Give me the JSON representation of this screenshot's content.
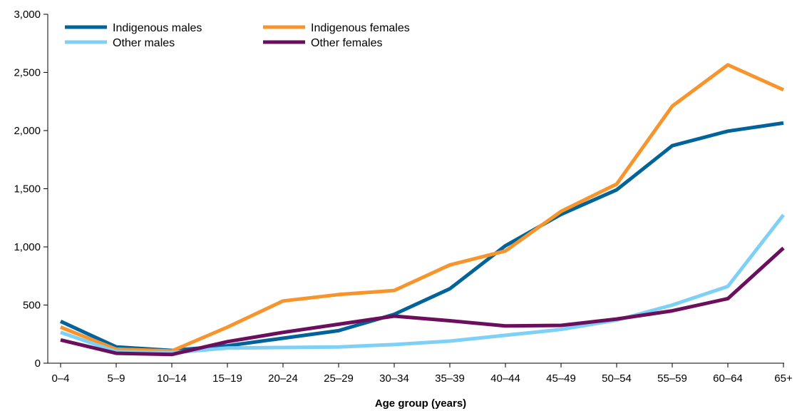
{
  "chart_data": {
    "type": "line",
    "title": "",
    "xlabel": "Age group (years)",
    "ylabel": "",
    "ylim": [
      0,
      3000
    ],
    "yticks": [
      0,
      500,
      1000,
      1500,
      2000,
      2500,
      3000
    ],
    "ytick_labels": [
      "0",
      "500",
      "1,000",
      "1,500",
      "2,000",
      "2,500",
      "3,000"
    ],
    "categories": [
      "0–4",
      "5–9",
      "10–14",
      "15–19",
      "20–24",
      "25–29",
      "30–34",
      "35–39",
      "40–44",
      "45–49",
      "50–54",
      "55–59",
      "60–64",
      "65+"
    ],
    "grid": false,
    "legend_position": "top-left",
    "series": [
      {
        "name": "Indigenous males",
        "color": "#00649b",
        "values": [
          360,
          140,
          110,
          150,
          215,
          280,
          420,
          640,
          1010,
          1280,
          1490,
          1870,
          1995,
          2065
        ]
      },
      {
        "name": "Indigenous females",
        "color": "#f7952c",
        "values": [
          310,
          120,
          105,
          310,
          535,
          590,
          625,
          845,
          965,
          1305,
          1540,
          2210,
          2565,
          2350
        ]
      },
      {
        "name": "Other males",
        "color": "#7fd0f7",
        "values": [
          265,
          100,
          90,
          130,
          135,
          140,
          160,
          190,
          240,
          290,
          370,
          500,
          660,
          1275
        ]
      },
      {
        "name": "Other females",
        "color": "#6b0f5d",
        "values": [
          200,
          85,
          75,
          185,
          265,
          335,
          405,
          365,
          320,
          325,
          380,
          450,
          555,
          990
        ]
      }
    ]
  }
}
